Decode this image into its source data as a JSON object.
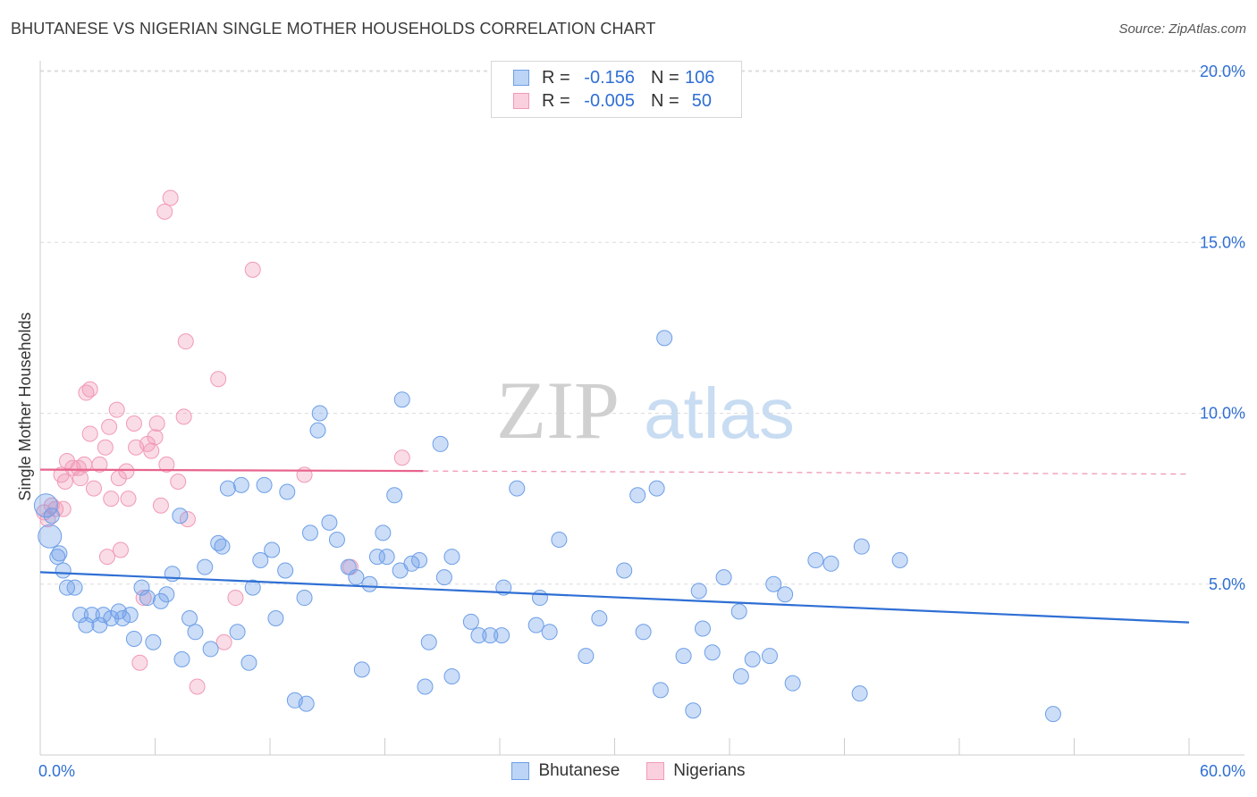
{
  "title": "BHUTANESE VS NIGERIAN SINGLE MOTHER HOUSEHOLDS CORRELATION CHART",
  "source": "Source: ZipAtlas.com",
  "watermark": {
    "part1": "ZIP",
    "part2": "atlas"
  },
  "legend": {
    "rows": [
      {
        "r_label": "R =",
        "r_value": "-0.156",
        "n_label": "N =",
        "n_value": "106"
      },
      {
        "r_label": "R =",
        "r_value": "-0.005",
        "n_label": "N =",
        "n_value": "50"
      }
    ]
  },
  "chart_data": {
    "type": "scatter",
    "title": "BHUTANESE VS NIGERIAN SINGLE MOTHER HOUSEHOLDS CORRELATION CHART",
    "xlabel": "",
    "ylabel": "Single Mother Households",
    "xlim": [
      0,
      60
    ],
    "ylim": [
      0,
      20.5
    ],
    "x_tick_labels": [
      "0.0%",
      "60.0%"
    ],
    "y_tick_labels": [
      "5.0%",
      "10.0%",
      "15.0%",
      "20.0%"
    ],
    "y_ticks": [
      5,
      10,
      15,
      20
    ],
    "grid": "horizontal dashed",
    "legend_placement": "top-center",
    "colors": {
      "bhutanese": "#6d9fe8",
      "bhutanese_line": "#2f6fd4",
      "nigerians": "#f19ab6",
      "nigerians_line": "#e8638d"
    },
    "series": [
      {
        "name": "Bhutanese",
        "trend": {
          "x": [
            0,
            60
          ],
          "y": [
            5.35,
            3.88
          ]
        },
        "points": [
          [
            0.3,
            7.3
          ],
          [
            0.5,
            6.4
          ],
          [
            0.9,
            5.8
          ],
          [
            1.2,
            5.4
          ],
          [
            1.4,
            4.9
          ],
          [
            1.8,
            4.9
          ],
          [
            2.1,
            4.1
          ],
          [
            2.4,
            3.8
          ],
          [
            2.7,
            4.1
          ],
          [
            3.1,
            3.8
          ],
          [
            3.3,
            4.1
          ],
          [
            3.7,
            4.0
          ],
          [
            4.1,
            4.2
          ],
          [
            4.3,
            4.0
          ],
          [
            4.7,
            4.1
          ],
          [
            4.9,
            3.4
          ],
          [
            5.3,
            4.9
          ],
          [
            5.6,
            4.6
          ],
          [
            5.9,
            3.3
          ],
          [
            6.3,
            4.5
          ],
          [
            6.6,
            4.7
          ],
          [
            6.9,
            5.3
          ],
          [
            7.3,
            7.0
          ],
          [
            7.4,
            2.8
          ],
          [
            7.8,
            4.0
          ],
          [
            8.1,
            3.6
          ],
          [
            8.6,
            5.5
          ],
          [
            8.9,
            3.1
          ],
          [
            9.3,
            6.2
          ],
          [
            9.5,
            6.1
          ],
          [
            9.8,
            7.8
          ],
          [
            10.3,
            3.6
          ],
          [
            10.5,
            7.9
          ],
          [
            10.9,
            2.7
          ],
          [
            11.1,
            4.9
          ],
          [
            11.5,
            5.7
          ],
          [
            11.7,
            7.9
          ],
          [
            12.1,
            6.0
          ],
          [
            12.3,
            4.0
          ],
          [
            12.8,
            5.4
          ],
          [
            12.9,
            7.7
          ],
          [
            13.3,
            1.6
          ],
          [
            13.8,
            4.6
          ],
          [
            13.9,
            1.5
          ],
          [
            14.1,
            6.5
          ],
          [
            14.5,
            9.5
          ],
          [
            14.6,
            10.0
          ],
          [
            15.1,
            6.8
          ],
          [
            15.5,
            6.3
          ],
          [
            16.1,
            5.5
          ],
          [
            16.5,
            5.2
          ],
          [
            16.8,
            2.5
          ],
          [
            17.2,
            5.0
          ],
          [
            17.6,
            5.8
          ],
          [
            17.9,
            6.5
          ],
          [
            18.1,
            5.8
          ],
          [
            18.5,
            7.6
          ],
          [
            18.8,
            5.4
          ],
          [
            18.9,
            10.4
          ],
          [
            19.4,
            5.6
          ],
          [
            19.8,
            5.7
          ],
          [
            20.1,
            2.0
          ],
          [
            20.3,
            3.3
          ],
          [
            20.9,
            9.1
          ],
          [
            21.1,
            5.2
          ],
          [
            21.5,
            5.8
          ],
          [
            22.5,
            3.9
          ],
          [
            22.9,
            3.5
          ],
          [
            23.5,
            3.5
          ],
          [
            24.1,
            3.5
          ],
          [
            24.2,
            4.9
          ],
          [
            24.9,
            7.8
          ],
          [
            25.9,
            3.8
          ],
          [
            26.1,
            4.6
          ],
          [
            26.6,
            3.6
          ],
          [
            27.1,
            6.3
          ],
          [
            28.5,
            2.9
          ],
          [
            29.2,
            4.0
          ],
          [
            30.5,
            5.4
          ],
          [
            31.2,
            7.6
          ],
          [
            31.5,
            3.6
          ],
          [
            32.2,
            7.8
          ],
          [
            32.4,
            1.9
          ],
          [
            32.6,
            12.2
          ],
          [
            33.6,
            2.9
          ],
          [
            34.1,
            1.3
          ],
          [
            34.4,
            4.8
          ],
          [
            34.6,
            3.7
          ],
          [
            35.1,
            3.0
          ],
          [
            35.7,
            5.2
          ],
          [
            36.5,
            4.2
          ],
          [
            36.6,
            2.3
          ],
          [
            37.2,
            2.8
          ],
          [
            38.1,
            2.9
          ],
          [
            38.3,
            5.0
          ],
          [
            38.9,
            4.7
          ],
          [
            39.3,
            2.1
          ],
          [
            40.5,
            5.7
          ],
          [
            41.3,
            5.6
          ],
          [
            42.8,
            1.8
          ],
          [
            42.9,
            6.1
          ],
          [
            44.9,
            5.7
          ],
          [
            52.9,
            1.2
          ],
          [
            0.6,
            7.0
          ],
          [
            1.0,
            5.9
          ],
          [
            21.5,
            2.3
          ]
        ]
      },
      {
        "name": "Nigerians",
        "trend": {
          "x": [
            0,
            20
          ],
          "y": [
            8.35,
            8.31
          ],
          "dashed_to": [
            60,
            8.22
          ]
        },
        "points": [
          [
            0.2,
            7.1
          ],
          [
            0.4,
            6.9
          ],
          [
            0.6,
            7.3
          ],
          [
            0.8,
            7.2
          ],
          [
            1.1,
            8.2
          ],
          [
            1.3,
            8.0
          ],
          [
            1.4,
            8.6
          ],
          [
            1.7,
            8.4
          ],
          [
            2.0,
            8.4
          ],
          [
            2.1,
            8.1
          ],
          [
            2.3,
            8.5
          ],
          [
            2.4,
            10.6
          ],
          [
            2.6,
            10.7
          ],
          [
            2.6,
            9.4
          ],
          [
            2.8,
            7.8
          ],
          [
            3.1,
            8.5
          ],
          [
            3.4,
            9.0
          ],
          [
            3.6,
            9.6
          ],
          [
            3.7,
            7.5
          ],
          [
            4.0,
            10.1
          ],
          [
            4.1,
            8.1
          ],
          [
            4.2,
            6.0
          ],
          [
            4.5,
            8.3
          ],
          [
            4.6,
            7.5
          ],
          [
            4.9,
            9.7
          ],
          [
            5.0,
            9.0
          ],
          [
            5.2,
            2.7
          ],
          [
            5.4,
            4.6
          ],
          [
            5.6,
            9.1
          ],
          [
            5.8,
            8.9
          ],
          [
            6.0,
            9.3
          ],
          [
            6.1,
            9.7
          ],
          [
            6.3,
            7.3
          ],
          [
            6.5,
            15.9
          ],
          [
            6.6,
            8.5
          ],
          [
            6.8,
            16.3
          ],
          [
            7.2,
            8.0
          ],
          [
            7.5,
            9.9
          ],
          [
            7.6,
            12.1
          ],
          [
            7.7,
            6.9
          ],
          [
            8.2,
            2.0
          ],
          [
            9.3,
            11.0
          ],
          [
            9.6,
            3.3
          ],
          [
            10.2,
            4.6
          ],
          [
            11.1,
            14.2
          ],
          [
            13.8,
            8.2
          ],
          [
            16.2,
            5.5
          ],
          [
            18.9,
            8.7
          ],
          [
            3.5,
            5.8
          ],
          [
            1.2,
            7.2
          ]
        ]
      }
    ]
  },
  "bottom_legend": [
    {
      "label": "Bhutanese"
    },
    {
      "label": "Nigerians"
    }
  ]
}
